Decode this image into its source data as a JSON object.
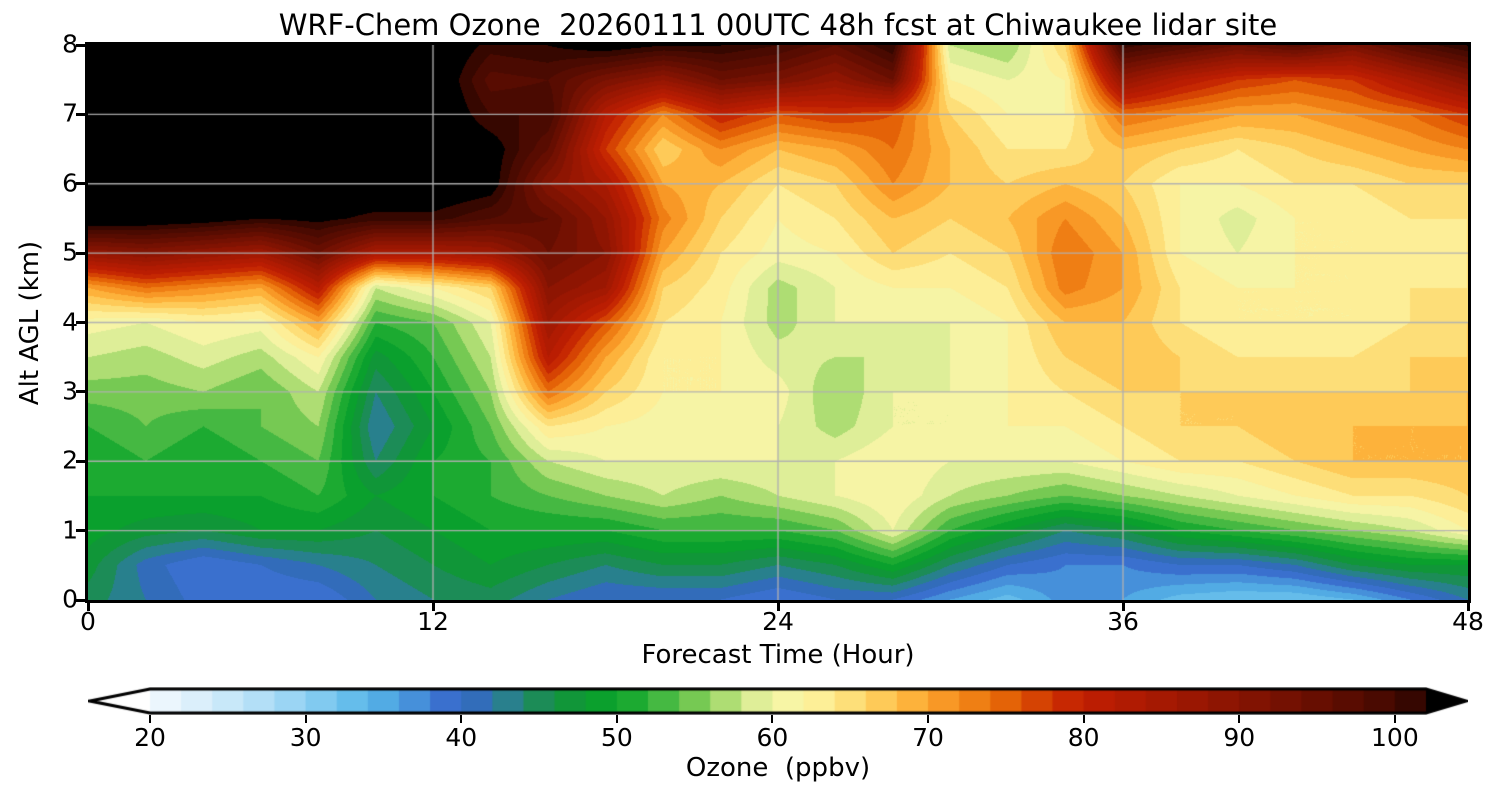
{
  "title": "WRF-Chem Ozone  20260111 00UTC 48h fcst at Chiwaukee lidar site",
  "axes": {
    "x_label": "Forecast Time (Hour)",
    "y_label": "Alt AGL (km)",
    "x_tick_values": [
      0,
      12,
      24,
      36,
      48
    ],
    "x_tick_labels": [
      "0",
      "12",
      "24",
      "36",
      "48"
    ],
    "y_tick_values": [
      0,
      1,
      2,
      3,
      4,
      5,
      6,
      7,
      8
    ],
    "y_tick_labels": [
      "0",
      "1",
      "2",
      "3",
      "4",
      "5",
      "6",
      "7",
      "8"
    ],
    "grid_color": "#b0b0b0",
    "spine_color": "#000000"
  },
  "colorbar": {
    "label": "Ozone  (ppbv)",
    "tick_values": [
      20,
      30,
      40,
      50,
      60,
      70,
      80,
      90,
      100
    ],
    "tick_labels": [
      "20",
      "30",
      "40",
      "50",
      "60",
      "70",
      "80",
      "90",
      "100"
    ],
    "level_min": 20,
    "level_max": 102,
    "level_step": 2,
    "under_color": "#ffffff",
    "over_color": "#000000"
  },
  "chart_data": {
    "type": "heatmap",
    "title": "WRF-Chem Ozone  20260111 00UTC 48h fcst at Chiwaukee lidar site",
    "xlabel": "Forecast Time (Hour)",
    "ylabel": "Alt AGL (km)",
    "value_label": "Ozone (ppbv)",
    "xlim": [
      0,
      48
    ],
    "ylim": [
      0,
      8
    ],
    "grid": true,
    "legend_position": "bottom-colorbar",
    "x_hours": [
      0,
      2,
      4,
      6,
      8,
      10,
      12,
      14,
      16,
      18,
      20,
      22,
      24,
      26,
      28,
      30,
      32,
      34,
      36,
      38,
      40,
      42,
      44,
      46,
      48
    ],
    "y_km": [
      0,
      0.5,
      1,
      1.5,
      2,
      2.5,
      3,
      3.5,
      4,
      4.5,
      5,
      5.5,
      6,
      6.5,
      7,
      7.5,
      8
    ],
    "row_order": "bottom_to_top",
    "values_ppbv": [
      [
        45,
        42,
        39,
        38,
        38,
        42,
        44,
        45,
        42,
        40,
        40,
        40,
        38,
        40,
        40,
        36,
        33,
        37,
        36,
        33,
        32,
        32,
        34,
        38,
        42
      ],
      [
        47,
        41,
        38,
        40,
        42,
        44,
        46,
        48,
        46,
        44,
        46,
        46,
        44,
        46,
        50,
        44,
        40,
        38,
        38,
        40,
        40,
        42,
        46,
        48,
        48
      ],
      [
        49,
        47,
        46,
        48,
        48,
        46,
        48,
        50,
        50,
        50,
        52,
        52,
        52,
        54,
        60,
        52,
        48,
        44,
        46,
        50,
        52,
        54,
        56,
        58,
        62
      ],
      [
        50,
        50,
        50,
        50,
        52,
        48,
        50,
        52,
        54,
        56,
        58,
        56,
        58,
        60,
        62,
        58,
        56,
        54,
        56,
        58,
        60,
        62,
        64,
        64,
        66
      ],
      [
        50,
        52,
        50,
        52,
        54,
        44,
        50,
        52,
        58,
        60,
        60,
        60,
        60,
        60,
        62,
        60,
        60,
        60,
        62,
        64,
        64,
        66,
        68,
        68,
        68
      ],
      [
        52,
        54,
        52,
        54,
        56,
        42,
        48,
        54,
        64,
        62,
        61,
        61,
        60,
        57,
        60,
        60,
        62,
        62,
        64,
        66,
        66,
        68,
        68,
        68,
        68
      ],
      [
        55,
        55,
        56,
        54,
        58,
        44,
        50,
        56,
        74,
        66,
        62,
        62,
        61,
        56,
        60,
        60,
        62,
        64,
        66,
        66,
        66,
        66,
        66,
        66,
        68
      ],
      [
        58,
        57,
        59,
        57,
        62,
        47,
        52,
        58,
        82,
        70,
        62,
        62,
        59,
        58,
        58,
        60,
        62,
        66,
        68,
        66,
        64,
        64,
        64,
        66,
        66
      ],
      [
        61,
        60,
        62,
        61,
        70,
        52,
        54,
        60,
        86,
        76,
        64,
        62,
        57,
        60,
        60,
        60,
        62,
        68,
        68,
        64,
        62,
        62,
        62,
        64,
        66
      ],
      [
        70,
        74,
        72,
        70,
        82,
        58,
        62,
        66,
        90,
        86,
        66,
        63,
        57,
        60,
        62,
        62,
        64,
        73,
        70,
        64,
        62,
        62,
        62,
        64,
        64
      ],
      [
        88,
        90,
        88,
        86,
        94,
        84,
        84,
        86,
        94,
        90,
        70,
        64,
        61,
        62,
        66,
        64,
        66,
        74,
        70,
        62,
        60,
        62,
        62,
        62,
        64
      ],
      [
        106,
        105,
        104,
        102,
        103,
        101,
        101,
        98,
        96,
        88,
        73,
        66,
        62,
        64,
        68,
        66,
        68,
        72,
        68,
        62,
        59,
        62,
        62,
        64,
        64
      ],
      [
        106,
        106,
        106,
        106,
        106,
        106,
        106,
        104,
        90,
        84,
        70,
        68,
        64,
        66,
        72,
        68,
        66,
        68,
        66,
        62,
        62,
        64,
        64,
        66,
        66
      ],
      [
        106,
        106,
        106,
        106,
        106,
        106,
        106,
        104,
        96,
        78,
        66,
        72,
        68,
        70,
        74,
        68,
        64,
        64,
        68,
        66,
        64,
        66,
        68,
        70,
        72
      ],
      [
        106,
        106,
        106,
        106,
        106,
        106,
        106,
        100,
        100,
        82,
        72,
        80,
        76,
        78,
        76,
        66,
        62,
        62,
        74,
        72,
        70,
        70,
        72,
        74,
        78
      ],
      [
        106,
        106,
        106,
        106,
        106,
        106,
        106,
        97,
        98,
        92,
        88,
        94,
        92,
        88,
        94,
        62,
        60,
        62,
        88,
        82,
        78,
        76,
        78,
        84,
        90
      ],
      [
        106,
        106,
        106,
        106,
        106,
        106,
        106,
        101,
        102,
        104,
        102,
        102,
        100,
        96,
        102,
        58,
        56,
        66,
        101,
        98,
        94,
        97,
        92,
        98,
        102
      ]
    ],
    "colormap_anchors": [
      [
        18,
        "#ffffff"
      ],
      [
        22,
        "#e4f3fc"
      ],
      [
        26,
        "#bfe4f8"
      ],
      [
        30,
        "#8fd0f2"
      ],
      [
        34,
        "#57b6e8"
      ],
      [
        36,
        "#4da0e0"
      ],
      [
        38,
        "#3f7fd4"
      ],
      [
        40,
        "#3561c8"
      ],
      [
        42,
        "#2e78ab"
      ],
      [
        44,
        "#23876f"
      ],
      [
        46,
        "#15903f"
      ],
      [
        48,
        "#0c9c32"
      ],
      [
        50,
        "#09a328"
      ],
      [
        52,
        "#2eb13a"
      ],
      [
        54,
        "#5cc04a"
      ],
      [
        56,
        "#8fd25c"
      ],
      [
        58,
        "#cde88a"
      ],
      [
        60,
        "#f0f4a6"
      ],
      [
        62,
        "#fdf5a4"
      ],
      [
        64,
        "#fde88a"
      ],
      [
        66,
        "#fdd567"
      ],
      [
        68,
        "#febf48"
      ],
      [
        70,
        "#fca42e"
      ],
      [
        72,
        "#f48c1d"
      ],
      [
        74,
        "#ea710a"
      ],
      [
        76,
        "#dd5404"
      ],
      [
        78,
        "#cd3202"
      ],
      [
        80,
        "#c01e02"
      ],
      [
        84,
        "#aa1a02"
      ],
      [
        88,
        "#941602"
      ],
      [
        92,
        "#7a1202"
      ],
      [
        96,
        "#600d01"
      ],
      [
        100,
        "#420901"
      ],
      [
        102,
        "#2a0500"
      ],
      [
        104,
        "#0d0100"
      ],
      [
        106,
        "#000000"
      ]
    ]
  }
}
